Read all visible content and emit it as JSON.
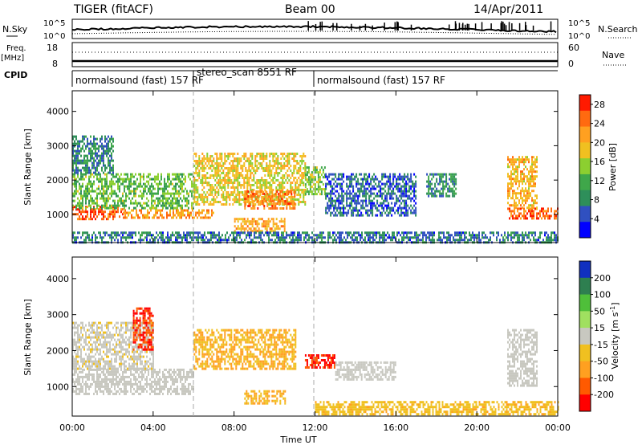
{
  "header": {
    "radar": "TIGER (fitACF)",
    "beam": "Beam 00",
    "date": "14/Apr/2011"
  },
  "status_panels": {
    "nsky_label": "N.Sky",
    "nsearch_label": "N.Search",
    "nsky_ticks": [
      "10^5",
      "10^0"
    ],
    "nsearch_ticks": [
      "10^5",
      "10^0"
    ],
    "freq_label": "Freq.",
    "freq_unit": "[MHz]",
    "freq_ticks": [
      "18",
      "8"
    ],
    "nave_label": "Nave",
    "nave_ticks": [
      "60",
      "0"
    ],
    "cpid_label": "CPID"
  },
  "cpid_segments": [
    {
      "label": "normalsound (fast) 157 RF",
      "start_h": 0,
      "end_h": 6
    },
    {
      "label": "stereo_scan 8551 RF",
      "start_h": 6,
      "end_h": 12
    },
    {
      "label": "normalsound (fast) 157 RF",
      "start_h": 12,
      "end_h": 24
    }
  ],
  "chart_data": [
    {
      "type": "heatmap",
      "name": "power",
      "ylabel": "Slant Range [km]",
      "ylim": [
        180,
        4600
      ],
      "yticks": [
        1000,
        2000,
        3000,
        4000
      ],
      "xlim": [
        0,
        24
      ],
      "xticks": [
        "00:00",
        "04:00",
        "08:00",
        "12:00",
        "16:00",
        "20:00",
        "00:00"
      ],
      "colorbar": {
        "label": "Power [dB]",
        "ticks": [
          4,
          8,
          12,
          16,
          20,
          24,
          28
        ],
        "range": [
          0,
          30
        ],
        "colors": [
          "#0000ff",
          "#3050c0",
          "#2e8f5a",
          "#3fa74a",
          "#8ccf30",
          "#f0c020",
          "#ffa020",
          "#ff6a10",
          "#ff1a00"
        ]
      },
      "regions": [
        {
          "t": [
            0,
            2.5
          ],
          "range": [
            850,
            1250
          ],
          "value": 26
        },
        {
          "t": [
            2.5,
            7
          ],
          "range": [
            900,
            1150
          ],
          "value": 22
        },
        {
          "t": [
            0,
            6
          ],
          "range": [
            1200,
            2200
          ],
          "value": 13
        },
        {
          "t": [
            0,
            2
          ],
          "range": [
            2200,
            3300
          ],
          "value": 8
        },
        {
          "t": [
            6,
            11.5
          ],
          "range": [
            1300,
            2800
          ],
          "value": 18
        },
        {
          "t": [
            8.5,
            11
          ],
          "range": [
            1200,
            1700
          ],
          "value": 24
        },
        {
          "t": [
            8,
            10.5
          ],
          "range": [
            500,
            900
          ],
          "value": 21
        },
        {
          "t": [
            11.5,
            12.5
          ],
          "range": [
            1600,
            2400
          ],
          "value": 14
        },
        {
          "t": [
            12.5,
            17
          ],
          "range": [
            1000,
            2200
          ],
          "value": 6
        },
        {
          "t": [
            17.5,
            19
          ],
          "range": [
            1500,
            2200
          ],
          "value": 9
        },
        {
          "t": [
            21.5,
            24
          ],
          "range": [
            900,
            1200
          ],
          "value": 25
        },
        {
          "t": [
            21.5,
            23
          ],
          "range": [
            1200,
            2700
          ],
          "value": 20
        },
        {
          "t": [
            0,
            24
          ],
          "range": [
            200,
            500
          ],
          "value": 7
        }
      ]
    },
    {
      "type": "heatmap",
      "name": "velocity",
      "ylabel": "Slant Range [km]",
      "xlabel": "Time UT",
      "ylim": [
        180,
        4600
      ],
      "yticks": [
        1000,
        2000,
        3000,
        4000
      ],
      "xlim": [
        0,
        24
      ],
      "xticks": [
        "00:00",
        "04:00",
        "08:00",
        "12:00",
        "16:00",
        "20:00",
        "00:00"
      ],
      "colorbar": {
        "label": "Velocity [m s^-1]",
        "ticks": [
          200,
          100,
          50,
          15,
          -15,
          -50,
          -100,
          -200
        ],
        "colors": [
          "#1030c0",
          "#2e7f50",
          "#4fbf3a",
          "#a0e060",
          "#c8c8c0",
          "#f0c020",
          "#ffa020",
          "#ff5a00",
          "#ff0000"
        ]
      },
      "regions": [
        {
          "t": [
            0,
            6
          ],
          "range": [
            800,
            1500
          ],
          "value": 0
        },
        {
          "t": [
            0,
            4
          ],
          "range": [
            1500,
            2800
          ],
          "value": -5
        },
        {
          "t": [
            3,
            4
          ],
          "range": [
            2000,
            3200
          ],
          "value": -200
        },
        {
          "t": [
            6,
            11
          ],
          "range": [
            1500,
            2600
          ],
          "value": -50
        },
        {
          "t": [
            8.5,
            10.5
          ],
          "range": [
            500,
            900
          ],
          "value": -50
        },
        {
          "t": [
            11.5,
            13
          ],
          "range": [
            1500,
            1900
          ],
          "value": -200
        },
        {
          "t": [
            13,
            16
          ],
          "range": [
            1200,
            1700
          ],
          "value": 0
        },
        {
          "t": [
            12,
            24
          ],
          "range": [
            200,
            600
          ],
          "value": -40
        },
        {
          "t": [
            21.5,
            23
          ],
          "range": [
            1000,
            2600
          ],
          "value": 0
        }
      ]
    }
  ]
}
